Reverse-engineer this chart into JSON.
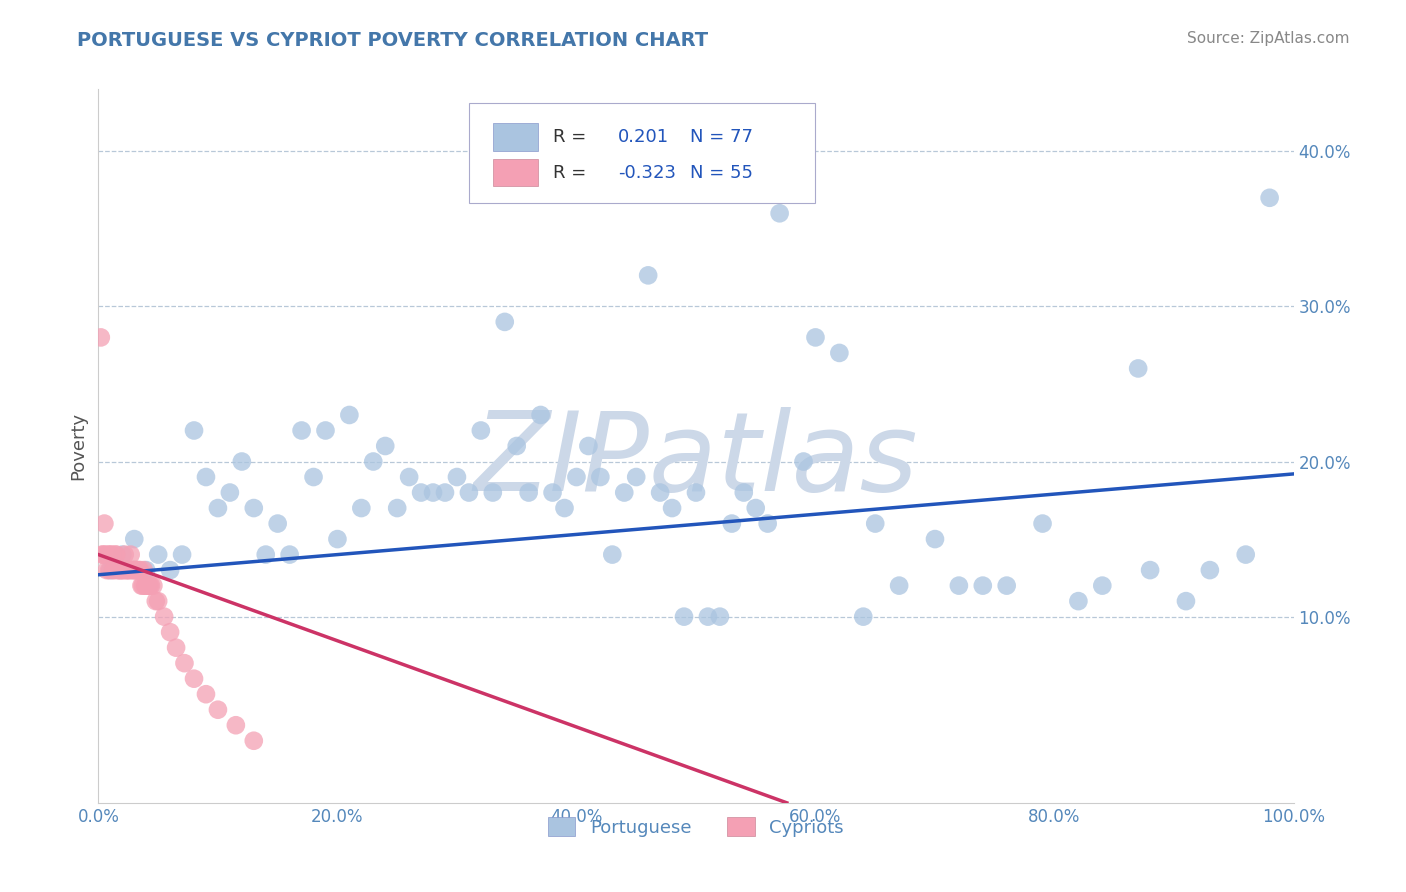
{
  "title": "PORTUGUESE VS CYPRIOT POVERTY CORRELATION CHART",
  "source_text": "Source: ZipAtlas.com",
  "ylabel": "Poverty",
  "xlim": [
    0,
    1.0
  ],
  "ylim": [
    -0.02,
    0.44
  ],
  "xticks": [
    0.0,
    0.2,
    0.4,
    0.6,
    0.8,
    1.0
  ],
  "xticklabels": [
    "0.0%",
    "20.0%",
    "40.0%",
    "60.0%",
    "80.0%",
    "100.0%"
  ],
  "ytick_positions": [
    0.1,
    0.2,
    0.3,
    0.4
  ],
  "ytick_labels": [
    "10.0%",
    "20.0%",
    "30.0%",
    "40.0%"
  ],
  "grid_yticks": [
    0.1,
    0.2,
    0.3,
    0.4
  ],
  "portuguese_color": "#aac4e0",
  "cypriot_color": "#f4a0b4",
  "portuguese_line_color": "#2255bb",
  "cypriot_line_color": "#cc3366",
  "r_portuguese": 0.201,
  "n_portuguese": 77,
  "r_cypriot": -0.323,
  "n_cypriot": 55,
  "watermark": "ZIPatlas",
  "watermark_color": "#ccd8e8",
  "legend_portuguese": "Portuguese",
  "legend_cypriot": "Cypriots",
  "title_color": "#4477aa",
  "tick_color": "#5588bb",
  "portuguese_x": [
    0.01,
    0.02,
    0.03,
    0.04,
    0.05,
    0.06,
    0.07,
    0.08,
    0.09,
    0.1,
    0.11,
    0.12,
    0.13,
    0.14,
    0.15,
    0.16,
    0.17,
    0.18,
    0.19,
    0.2,
    0.21,
    0.22,
    0.23,
    0.24,
    0.25,
    0.26,
    0.27,
    0.28,
    0.29,
    0.3,
    0.31,
    0.32,
    0.33,
    0.34,
    0.35,
    0.36,
    0.37,
    0.38,
    0.39,
    0.4,
    0.41,
    0.42,
    0.43,
    0.44,
    0.45,
    0.46,
    0.47,
    0.48,
    0.49,
    0.5,
    0.51,
    0.52,
    0.53,
    0.54,
    0.55,
    0.56,
    0.57,
    0.58,
    0.59,
    0.6,
    0.62,
    0.64,
    0.65,
    0.67,
    0.7,
    0.72,
    0.74,
    0.76,
    0.79,
    0.82,
    0.84,
    0.87,
    0.88,
    0.91,
    0.93,
    0.96,
    0.98
  ],
  "portuguese_y": [
    0.13,
    0.14,
    0.15,
    0.13,
    0.14,
    0.13,
    0.14,
    0.22,
    0.19,
    0.17,
    0.18,
    0.2,
    0.17,
    0.14,
    0.16,
    0.14,
    0.22,
    0.19,
    0.22,
    0.15,
    0.23,
    0.17,
    0.2,
    0.21,
    0.17,
    0.19,
    0.18,
    0.18,
    0.18,
    0.19,
    0.18,
    0.22,
    0.18,
    0.29,
    0.21,
    0.18,
    0.23,
    0.18,
    0.17,
    0.19,
    0.21,
    0.19,
    0.14,
    0.18,
    0.19,
    0.32,
    0.18,
    0.17,
    0.1,
    0.18,
    0.1,
    0.1,
    0.16,
    0.18,
    0.17,
    0.16,
    0.36,
    0.38,
    0.2,
    0.28,
    0.27,
    0.1,
    0.16,
    0.12,
    0.15,
    0.12,
    0.12,
    0.12,
    0.16,
    0.11,
    0.12,
    0.26,
    0.13,
    0.11,
    0.13,
    0.14,
    0.37
  ],
  "cypriot_x": [
    0.002,
    0.003,
    0.004,
    0.005,
    0.006,
    0.007,
    0.008,
    0.009,
    0.01,
    0.011,
    0.012,
    0.013,
    0.014,
    0.015,
    0.016,
    0.017,
    0.018,
    0.019,
    0.02,
    0.021,
    0.022,
    0.023,
    0.024,
    0.025,
    0.026,
    0.027,
    0.028,
    0.029,
    0.03,
    0.031,
    0.032,
    0.033,
    0.034,
    0.035,
    0.036,
    0.037,
    0.038,
    0.039,
    0.04,
    0.041,
    0.042,
    0.043,
    0.044,
    0.046,
    0.048,
    0.05,
    0.055,
    0.06,
    0.065,
    0.072,
    0.08,
    0.09,
    0.1,
    0.115,
    0.13
  ],
  "cypriot_y": [
    0.28,
    0.14,
    0.14,
    0.16,
    0.14,
    0.13,
    0.14,
    0.13,
    0.14,
    0.14,
    0.13,
    0.13,
    0.14,
    0.14,
    0.13,
    0.13,
    0.13,
    0.13,
    0.13,
    0.13,
    0.14,
    0.13,
    0.13,
    0.13,
    0.13,
    0.14,
    0.13,
    0.13,
    0.13,
    0.13,
    0.13,
    0.13,
    0.13,
    0.13,
    0.12,
    0.12,
    0.13,
    0.12,
    0.12,
    0.12,
    0.12,
    0.12,
    0.12,
    0.12,
    0.11,
    0.11,
    0.1,
    0.09,
    0.08,
    0.07,
    0.06,
    0.05,
    0.04,
    0.03,
    0.02
  ],
  "blue_line_x0": 0.0,
  "blue_line_y0": 0.127,
  "blue_line_x1": 1.0,
  "blue_line_y1": 0.192,
  "pink_line_x0": 0.0,
  "pink_line_y0": 0.14,
  "pink_line_x1": 0.18,
  "pink_line_y1": 0.09
}
